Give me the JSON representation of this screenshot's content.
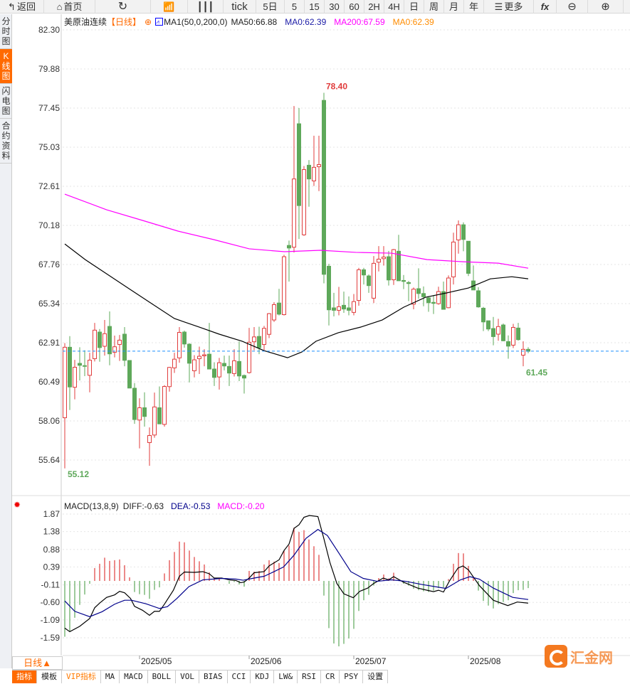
{
  "toolbar": {
    "back": "返回",
    "home": "首页",
    "tick": "tick",
    "d5": "5日",
    "m5": "5",
    "m15": "15",
    "m30": "30",
    "m60": "60",
    "h2": "2H",
    "h4": "4H",
    "day": "日",
    "week": "周",
    "month": "月",
    "year": "年",
    "more": "更多",
    "fx": "fx"
  },
  "sidebar": [
    "分时图",
    "K线图",
    "闪电图",
    "合约资料"
  ],
  "legend": {
    "symbol": "美原油连续",
    "period": "【日线】",
    "indicator": "MA1(50,0,200,0)",
    "ma50": "MA50:66.88",
    "ma0": "MA0:62.39",
    "ma200": "MA200:67.59",
    "ma0b": "MA0:62.39"
  },
  "macd_legend": {
    "name": "MACD(13,8,9)",
    "diff": "DIFF:-0.63",
    "dea": "DEA:-0.53",
    "macd": "MACD:-0.20"
  },
  "colors": {
    "up": "#e03c3c",
    "down": "#5ea85a",
    "ma50": "#000000",
    "ma200": "#ff00ff",
    "dea": "#00008b",
    "current": "#1e90ff",
    "accent": "#ff6a00"
  },
  "price_axis": [
    "82.30",
    "79.88",
    "77.45",
    "75.03",
    "72.61",
    "70.18",
    "67.76",
    "65.34",
    "62.91",
    "60.49",
    "58.06",
    "55.64"
  ],
  "macd_axis": [
    "1.87",
    "1.38",
    "0.88",
    "0.39",
    "-0.11",
    "-0.60",
    "-1.09",
    "-1.59"
  ],
  "x_labels": [
    {
      "i": 15,
      "label": "2025/05"
    },
    {
      "i": 37,
      "label": "2025/06"
    },
    {
      "i": 58,
      "label": "2025/07"
    },
    {
      "i": 81,
      "label": "2025/08"
    }
  ],
  "annotations": {
    "high": "78.40",
    "low": "55.12",
    "last_low": "61.45"
  },
  "current_price": 62.39,
  "bottom": {
    "dayline": "日线▲",
    "tabs": [
      "指标",
      "模板",
      "VIP指标",
      "MA",
      "MACD",
      "BOLL",
      "VOL",
      "BIAS",
      "CCI",
      "KDJ",
      "LW&",
      "RSI",
      "CR",
      "PSY",
      "设置"
    ]
  },
  "logo": "汇金网",
  "chart_data": {
    "type": "candlestick",
    "y_range": [
      55.64,
      82.3
    ],
    "candles": [
      [
        58.26,
        62.89,
        55.12,
        62.63
      ],
      [
        62.63,
        63.32,
        58.74,
        60.17
      ],
      [
        60.15,
        61.85,
        59.4,
        61.39
      ],
      [
        61.63,
        62.63,
        60.57,
        61.51
      ],
      [
        61.49,
        62.44,
        60.84,
        61.47
      ],
      [
        60.89,
        62.29,
        59.84,
        61.83
      ],
      [
        61.92,
        64.14,
        61.75,
        63.69
      ],
      [
        63.57,
        63.76,
        61.73,
        62.61
      ],
      [
        62.69,
        64.32,
        62.11,
        63.47
      ],
      [
        63.92,
        64.85,
        61.51,
        62.22
      ],
      [
        62.32,
        63.35,
        62.0,
        62.66
      ],
      [
        62.8,
        63.39,
        61.78,
        63.07
      ],
      [
        63.44,
        63.88,
        61.45,
        61.82
      ],
      [
        61.81,
        61.81,
        60.1,
        60.1
      ],
      [
        60.09,
        60.41,
        57.88,
        58.15
      ],
      [
        58.12,
        59.47,
        56.36,
        58.88
      ],
      [
        58.88,
        59.84,
        57.71,
        58.34
      ],
      [
        56.72,
        57.66,
        55.28,
        57.16
      ],
      [
        57.19,
        59.82,
        57.02,
        58.93
      ],
      [
        58.88,
        60.2,
        57.88,
        57.88
      ],
      [
        57.85,
        60.28,
        57.71,
        60.2
      ],
      [
        60.19,
        61.41,
        59.88,
        61.38
      ],
      [
        61.35,
        62.29,
        61.04,
        61.89
      ],
      [
        61.97,
        63.88,
        61.67,
        63.55
      ],
      [
        63.57,
        63.66,
        62.6,
        62.83
      ],
      [
        62.82,
        62.88,
        60.45,
        61.64
      ],
      [
        61.17,
        62.14,
        60.76,
        61.85
      ],
      [
        61.92,
        62.67,
        60.97,
        62.07
      ],
      [
        62.1,
        62.51,
        61.45,
        62.16
      ],
      [
        62.2,
        64.14,
        61.28,
        61.28
      ],
      [
        61.28,
        61.7,
        60.23,
        60.76
      ],
      [
        60.79,
        61.97,
        60.01,
        61.67
      ],
      [
        61.63,
        62.11,
        61.2,
        61.47
      ],
      [
        61.44,
        62.11,
        60.23,
        61.03
      ],
      [
        61.0,
        62.51,
        60.82,
        61.79
      ],
      [
        61.75,
        62.99,
        60.53,
        60.85
      ],
      [
        60.88,
        60.94,
        59.76,
        60.72
      ],
      [
        61.06,
        63.83,
        61.0,
        62.94
      ],
      [
        62.97,
        63.88,
        62.44,
        63.27
      ],
      [
        63.3,
        63.9,
        62.2,
        62.6
      ],
      [
        62.8,
        63.95,
        62.4,
        63.8
      ],
      [
        63.43,
        64.75,
        63.2,
        64.71
      ],
      [
        64.32,
        65.42,
        64.2,
        65.27
      ],
      [
        65.37,
        66.25,
        64.6,
        64.68
      ],
      [
        64.65,
        68.36,
        64.6,
        68.24
      ],
      [
        68.94,
        69.24,
        66.7,
        68.78
      ],
      [
        68.83,
        77.58,
        68.5,
        73.06
      ],
      [
        76.48,
        77.46,
        69.34,
        71.41
      ],
      [
        69.6,
        73.86,
        69.53,
        73.64
      ],
      [
        73.91,
        74.23,
        71.34,
        73.06
      ],
      [
        72.94,
        75.74,
        72.62,
        73.78
      ],
      [
        73.82,
        75.74,
        72.31,
        73.95
      ],
      [
        77.93,
        78.4,
        66.59,
        67.15
      ],
      [
        67.65,
        67.8,
        63.98,
        64.95
      ],
      [
        65.07,
        66.0,
        64.54,
        64.92
      ],
      [
        64.92,
        66.37,
        64.61,
        65.14
      ],
      [
        65.23,
        66.08,
        64.76,
        65.0
      ],
      [
        65.07,
        65.78,
        64.61,
        64.92
      ],
      [
        64.79,
        65.93,
        64.61,
        65.46
      ],
      [
        65.53,
        67.55,
        65.2,
        67.43
      ],
      [
        67.43,
        67.55,
        66.52,
        67.11
      ],
      [
        67.05,
        67.14,
        66.0,
        66.45
      ],
      [
        65.67,
        68.28,
        65.37,
        67.83
      ],
      [
        67.9,
        68.9,
        67.33,
        68.09
      ],
      [
        68.12,
        68.9,
        67.69,
        68.22
      ],
      [
        68.24,
        68.6,
        66.45,
        66.8
      ],
      [
        66.81,
        68.72,
        66.49,
        68.68
      ],
      [
        68.58,
        69.6,
        66.74,
        66.75
      ],
      [
        66.77,
        67.11,
        66.23,
        66.71
      ],
      [
        66.64,
        66.74,
        65.49,
        66.58
      ],
      [
        65.3,
        66.33,
        64.98,
        66.23
      ],
      [
        66.26,
        67.52,
        65.64,
        65.96
      ],
      [
        65.96,
        66.4,
        65.17,
        65.76
      ],
      [
        65.69,
        65.76,
        64.83,
        65.39
      ],
      [
        65.41,
        65.86,
        64.69,
        65.35
      ],
      [
        65.33,
        66.38,
        65.27,
        66.08
      ],
      [
        66.08,
        66.7,
        64.98,
        64.98
      ],
      [
        65.08,
        67.08,
        65.05,
        66.92
      ],
      [
        66.99,
        69.73,
        66.52,
        69.15
      ],
      [
        69.28,
        70.49,
        68.43,
        70.22
      ],
      [
        70.22,
        70.37,
        68.58,
        69.31
      ],
      [
        69.2,
        69.2,
        67.04,
        67.21
      ],
      [
        66.74,
        67.7,
        66.18,
        66.18
      ],
      [
        66.13,
        66.35,
        65.08,
        65.13
      ],
      [
        65.05,
        65.13,
        63.63,
        64.2
      ],
      [
        64.27,
        64.27,
        63.63,
        63.76
      ],
      [
        63.79,
        64.51,
        62.75,
        63.29
      ],
      [
        63.44,
        64.39,
        63.03,
        63.91
      ],
      [
        64.01,
        64.1,
        63.0,
        63.03
      ],
      [
        62.98,
        63.36,
        61.92,
        62.7
      ],
      [
        62.76,
        64.08,
        62.58,
        63.86
      ],
      [
        63.82,
        64.14,
        63.04,
        63.1
      ],
      [
        62.14,
        63.0,
        61.45,
        62.5
      ],
      [
        62.5,
        62.63,
        62.26,
        62.38
      ]
    ],
    "ma50": [
      [
        0,
        69.03
      ],
      [
        4.1,
        68.06
      ],
      [
        8.4,
        67.18
      ],
      [
        12.7,
        66.3
      ],
      [
        17,
        65.42
      ],
      [
        22,
        64.41
      ],
      [
        27,
        63.88
      ],
      [
        31,
        63.44
      ],
      [
        35.6,
        63.0
      ],
      [
        40,
        62.42
      ],
      [
        44.7,
        61.98
      ],
      [
        47.6,
        62.34
      ],
      [
        50.4,
        63.0
      ],
      [
        54.9,
        63.53
      ],
      [
        59.4,
        63.88
      ],
      [
        63.7,
        64.32
      ],
      [
        68,
        65.11
      ],
      [
        72.4,
        65.73
      ],
      [
        76.7,
        66.0
      ],
      [
        81,
        66.3
      ],
      [
        85.4,
        66.87
      ],
      [
        89.7,
        67.0
      ],
      [
        93,
        66.87
      ]
    ],
    "ma200": [
      [
        0,
        72.12
      ],
      [
        8.4,
        71.15
      ],
      [
        15.6,
        70.49
      ],
      [
        22.7,
        69.83
      ],
      [
        29.9,
        69.3
      ],
      [
        37,
        68.73
      ],
      [
        44.1,
        68.55
      ],
      [
        51.3,
        68.64
      ],
      [
        58.4,
        68.51
      ],
      [
        65.6,
        68.46
      ],
      [
        72.7,
        68.06
      ],
      [
        79.9,
        67.93
      ],
      [
        87,
        67.84
      ],
      [
        93,
        67.53
      ]
    ],
    "macd": {
      "y_range": [
        -1.59,
        1.87
      ],
      "hist": [
        -1.56,
        -1.42,
        -1.03,
        -0.67,
        -0.38,
        -0.08,
        0.36,
        0.48,
        0.65,
        0.56,
        0.58,
        0.6,
        0.44,
        0.1,
        -0.31,
        -0.37,
        -0.39,
        -0.5,
        -0.25,
        -0.18,
        0.21,
        0.58,
        0.81,
        1.1,
        1.08,
        0.85,
        0.67,
        0.55,
        0.46,
        0.24,
        0.07,
        0.08,
        0,
        -0.08,
        -0.03,
        -0.1,
        -0.16,
        0.28,
        0.26,
        0.28,
        0.46,
        0.58,
        0.54,
        0.5,
        0.85,
        0.99,
        1.49,
        1.37,
        1.42,
        1.16,
        0.97,
        0.73,
        -0.41,
        -1.32,
        -1.75,
        -1.83,
        -1.76,
        -1.61,
        -1.34,
        -0.84,
        -0.54,
        -0.39,
        -0.13,
        0.08,
        0.18,
        0.07,
        0.23,
        0,
        -0.08,
        -0.13,
        -0.22,
        -0.26,
        -0.29,
        -0.31,
        -0.27,
        -0.2,
        -0.18,
        0.05,
        0.48,
        0.78,
        0.77,
        0.42,
        0.08,
        -0.27,
        -0.56,
        -0.69,
        -0.77,
        -0.65,
        -0.59,
        -0.54,
        -0.34,
        -0.26,
        -0.25,
        -0.2
      ],
      "diff": [
        [
          0,
          -1.32
        ],
        [
          1,
          -1.42
        ],
        [
          3,
          -1.27
        ],
        [
          5,
          -1.05
        ],
        [
          6,
          -0.75
        ],
        [
          7,
          -0.62
        ],
        [
          8.4,
          -0.46
        ],
        [
          10,
          -0.39
        ],
        [
          11,
          -0.29
        ],
        [
          12,
          -0.33
        ],
        [
          13.2,
          -0.49
        ],
        [
          14,
          -0.71
        ],
        [
          15.6,
          -0.82
        ],
        [
          17,
          -0.96
        ],
        [
          18,
          -0.85
        ],
        [
          19,
          -0.85
        ],
        [
          20,
          -0.65
        ],
        [
          21.8,
          -0.26
        ],
        [
          23,
          0.13
        ],
        [
          24,
          0.25
        ],
        [
          26,
          0.24
        ],
        [
          27.7,
          0.26
        ],
        [
          29,
          0.2
        ],
        [
          30,
          0.08
        ],
        [
          31.5,
          0.08
        ],
        [
          33,
          0.03
        ],
        [
          34.4,
          0.01
        ],
        [
          35.3,
          -0.05
        ],
        [
          36,
          -0.03
        ],
        [
          37,
          0.08
        ],
        [
          38,
          0.23
        ],
        [
          40,
          0.26
        ],
        [
          41,
          0.42
        ],
        [
          43,
          0.59
        ],
        [
          44,
          0.85
        ],
        [
          45,
          1.03
        ],
        [
          46,
          1.47
        ],
        [
          47,
          1.57
        ],
        [
          48,
          1.78
        ],
        [
          49.1,
          1.83
        ],
        [
          50.8,
          1.8
        ],
        [
          52,
          1.18
        ],
        [
          53.2,
          0.52
        ],
        [
          54.6,
          -0.07
        ],
        [
          56,
          -0.36
        ],
        [
          57.9,
          -0.47
        ],
        [
          59.2,
          -0.29
        ],
        [
          60.8,
          -0.2
        ],
        [
          62,
          -0.07
        ],
        [
          63.9,
          0.08
        ],
        [
          65,
          0.03
        ],
        [
          66,
          0.12
        ],
        [
          67.9,
          -0.03
        ],
        [
          70.8,
          -0.2
        ],
        [
          73,
          -0.27
        ],
        [
          74,
          -0.3
        ],
        [
          75,
          -0.26
        ],
        [
          76,
          -0.31
        ],
        [
          77.2,
          0
        ],
        [
          78.9,
          0.36
        ],
        [
          79.9,
          0.42
        ],
        [
          81,
          0.31
        ],
        [
          83.2,
          -0.13
        ],
        [
          86,
          -0.54
        ],
        [
          88.9,
          -0.69
        ],
        [
          90.8,
          -0.59
        ],
        [
          93,
          -0.62
        ]
      ],
      "dea": [
        [
          0,
          -0.56
        ],
        [
          2,
          -0.85
        ],
        [
          5,
          -1.0
        ],
        [
          7.5,
          -0.86
        ],
        [
          10,
          -0.65
        ],
        [
          12,
          -0.54
        ],
        [
          13.4,
          -0.54
        ],
        [
          16.3,
          -0.64
        ],
        [
          19,
          -0.77
        ],
        [
          20.6,
          -0.72
        ],
        [
          22.5,
          -0.49
        ],
        [
          24.9,
          -0.16
        ],
        [
          27.7,
          0.03
        ],
        [
          31.5,
          0.07
        ],
        [
          34.4,
          0.05
        ],
        [
          35.8,
          0.02
        ],
        [
          38,
          0.08
        ],
        [
          40,
          0.13
        ],
        [
          42,
          0.26
        ],
        [
          43.9,
          0.39
        ],
        [
          46,
          0.72
        ],
        [
          48.4,
          1.19
        ],
        [
          50.8,
          1.44
        ],
        [
          52.7,
          1.27
        ],
        [
          55,
          0.78
        ],
        [
          57.4,
          0.26
        ],
        [
          59.9,
          0.07
        ],
        [
          62.7,
          -0.01
        ],
        [
          65.6,
          0.03
        ],
        [
          68.4,
          -0.01
        ],
        [
          71.7,
          -0.1
        ],
        [
          76.5,
          -0.21
        ],
        [
          79.4,
          0.03
        ],
        [
          81.3,
          0.12
        ],
        [
          83.2,
          0.05
        ],
        [
          86,
          -0.2
        ],
        [
          89.9,
          -0.46
        ],
        [
          93,
          -0.52
        ]
      ]
    }
  }
}
